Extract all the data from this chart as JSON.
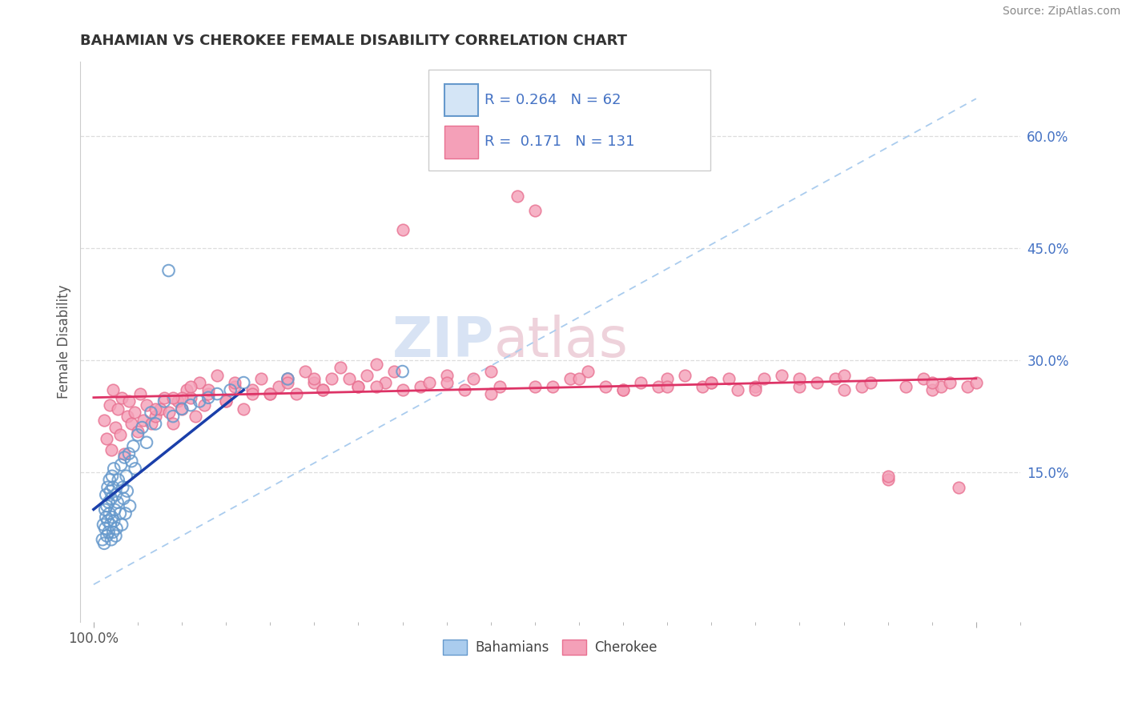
{
  "title": "BAHAMIAN VS CHEROKEE FEMALE DISABILITY CORRELATION CHART",
  "source": "Source: ZipAtlas.com",
  "ylabel": "Female Disability",
  "bahamian_color": "#aaccee",
  "cherokee_color": "#f4a0b8",
  "bahamian_edge": "#6699cc",
  "cherokee_edge": "#e87090",
  "trend_blue": "#1a3faa",
  "trend_pink": "#dd3366",
  "legend_R_blue": "0.264",
  "legend_N_blue": "62",
  "legend_R_pink": "0.171",
  "legend_N_pink": "131",
  "text_color_blue": "#4472c4",
  "title_color": "#333333",
  "grid_color": "#dddddd",
  "ref_line_color": "#aaccee",
  "watermark_zip_color": "#c8d8f0",
  "watermark_atlas_color": "#e8c8d8",
  "y_tick_vals": [
    0.15,
    0.3,
    0.45,
    0.6
  ],
  "y_tick_labels": [
    "15.0%",
    "30.0%",
    "45.0%",
    "60.0%"
  ],
  "ylim_low": -0.05,
  "ylim_high": 0.7,
  "xlim_low": -0.015,
  "xlim_high": 1.05
}
